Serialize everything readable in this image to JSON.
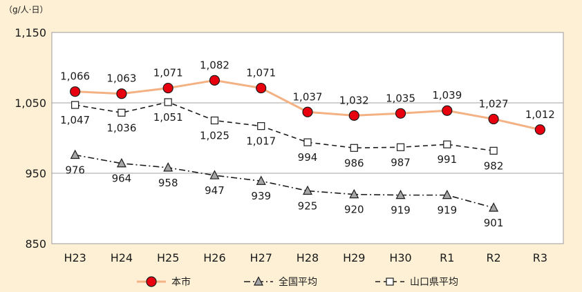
{
  "chart_data": {
    "type": "line",
    "unit_label": "（g/人·日）",
    "categories": [
      "H23",
      "H24",
      "H25",
      "H26",
      "H27",
      "H28",
      "H29",
      "H30",
      "R1",
      "R2",
      "R3"
    ],
    "ylim": [
      850,
      1150
    ],
    "y_ticks": [
      "850",
      "950",
      "1,050",
      "1,150"
    ],
    "grid": "horizontal",
    "legend_position": "bottom",
    "series": [
      {
        "name": "本市",
        "values": [
          1066,
          1063,
          1071,
          1082,
          1071,
          1037,
          1032,
          1035,
          1039,
          1027,
          1012
        ],
        "labels": [
          "1,066",
          "1,063",
          "1,071",
          "1,082",
          "1,071",
          "1,037",
          "1,032",
          "1,035",
          "1,039",
          "1,027",
          "1,012"
        ],
        "color": "#f4b183",
        "marker_fill": "#e8000e",
        "style": "solid",
        "marker": "circle",
        "label_pos": "above"
      },
      {
        "name": "全国平均",
        "values": [
          976,
          964,
          958,
          947,
          939,
          925,
          920,
          919,
          919,
          901,
          null
        ],
        "labels": [
          "976",
          "964",
          "958",
          "947",
          "939",
          "925",
          "920",
          "919",
          "919",
          "901",
          ""
        ],
        "color": "#1a1a1a",
        "marker_fill": "#a6a6a6",
        "style": "dashdot",
        "marker": "triangle",
        "label_pos": "below"
      },
      {
        "name": "山口県平均",
        "values": [
          1047,
          1036,
          1051,
          1025,
          1017,
          994,
          986,
          987,
          991,
          982,
          null
        ],
        "labels": [
          "1,047",
          "1,036",
          "1,051",
          "1,025",
          "1,017",
          "994",
          "986",
          "987",
          "991",
          "982",
          ""
        ],
        "color": "#1a1a1a",
        "marker_fill": "#ffffff",
        "style": "dashed",
        "marker": "square",
        "label_pos": "below"
      }
    ]
  }
}
